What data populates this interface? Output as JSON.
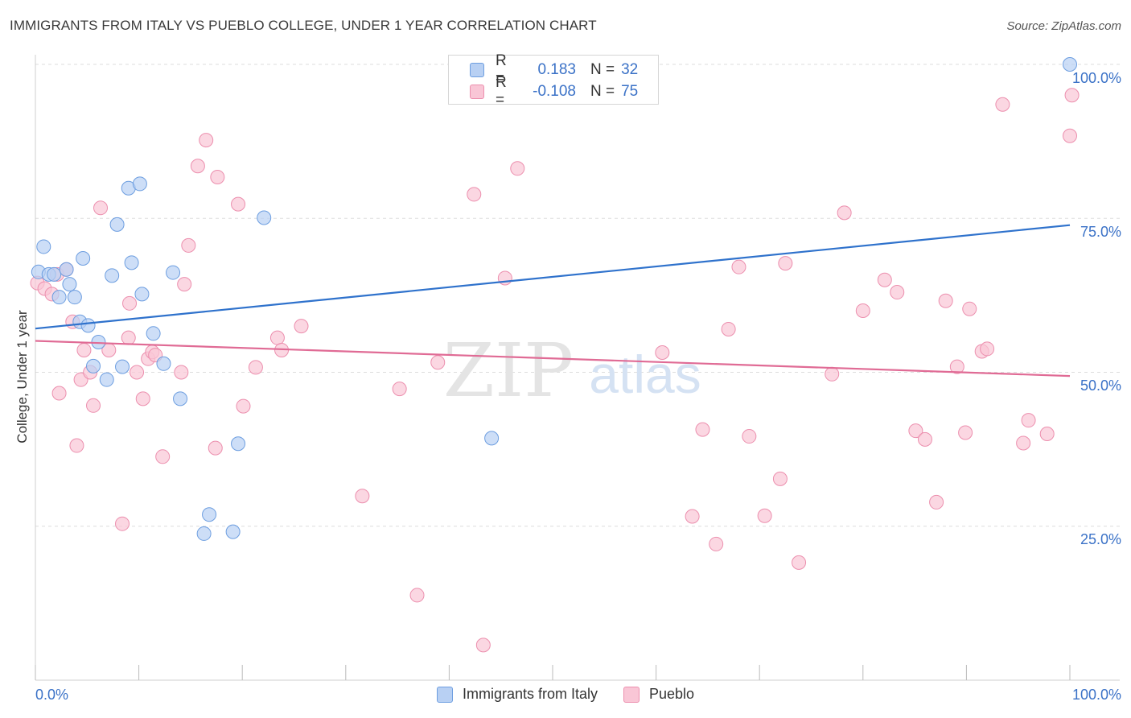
{
  "title": "IMMIGRANTS FROM ITALY VS PUEBLO COLLEGE, UNDER 1 YEAR CORRELATION CHART",
  "source": "Source: ZipAtlas.com",
  "watermark": {
    "zip": "ZIP",
    "atlas": "atlas"
  },
  "legend_top": [
    {
      "r_label": "R =",
      "r_value": "0.183",
      "n_label": "N =",
      "n_value": "32"
    },
    {
      "r_label": "R =",
      "r_value": "-0.108",
      "n_label": "N =",
      "n_value": "75"
    }
  ],
  "legend_bottom": {
    "series1": "Immigrants from Italy",
    "series2": "Pueblo"
  },
  "axes": {
    "ylabel": "College, Under 1 year",
    "y_ticks": [
      "100.0%",
      "75.0%",
      "50.0%",
      "25.0%"
    ],
    "x_left": "0.0%",
    "x_right": "100.0%"
  },
  "colors": {
    "blue_fill": "#b8d0f3",
    "blue_stroke": "#6d9ee0",
    "blue_line": "#2f72cc",
    "pink_fill": "#f9c6d6",
    "pink_stroke": "#ec8fae",
    "pink_line": "#e06b95",
    "grid": "#dddddd",
    "accent_text": "#3b72c7"
  },
  "chart_data": {
    "type": "scatter",
    "xlim": [
      0,
      100
    ],
    "ylim": [
      0,
      100
    ],
    "series": [
      {
        "name": "Immigrants from Italy",
        "r": 0.183,
        "n": 32,
        "trend": [
          [
            0,
            57.1
          ],
          [
            100,
            73.9
          ]
        ],
        "points": [
          [
            0.3,
            66.3
          ],
          [
            0.8,
            70.4
          ],
          [
            1.3,
            65.9
          ],
          [
            1.8,
            65.9
          ],
          [
            2.3,
            62.2
          ],
          [
            3.0,
            66.7
          ],
          [
            3.3,
            64.3
          ],
          [
            3.8,
            62.2
          ],
          [
            4.3,
            58.2
          ],
          [
            4.6,
            68.5
          ],
          [
            5.1,
            57.6
          ],
          [
            5.6,
            51.0
          ],
          [
            6.1,
            54.9
          ],
          [
            6.9,
            48.8
          ],
          [
            7.4,
            65.7
          ],
          [
            7.9,
            74.0
          ],
          [
            8.4,
            50.9
          ],
          [
            9.0,
            79.9
          ],
          [
            9.3,
            67.8
          ],
          [
            10.1,
            80.6
          ],
          [
            10.3,
            62.7
          ],
          [
            11.4,
            56.3
          ],
          [
            12.4,
            51.4
          ],
          [
            13.3,
            66.2
          ],
          [
            14.0,
            45.7
          ],
          [
            16.3,
            23.8
          ],
          [
            16.8,
            26.9
          ],
          [
            19.1,
            24.1
          ],
          [
            19.6,
            38.4
          ],
          [
            22.1,
            75.1
          ],
          [
            44.1,
            39.3
          ],
          [
            100.0,
            100.0
          ]
        ]
      },
      {
        "name": "Pueblo",
        "r": -0.108,
        "n": 75,
        "trend": [
          [
            0,
            55.1
          ],
          [
            100,
            49.4
          ]
        ],
        "points": [
          [
            0.2,
            64.5
          ],
          [
            0.9,
            63.6
          ],
          [
            1.6,
            62.7
          ],
          [
            2.1,
            65.9
          ],
          [
            2.3,
            46.6
          ],
          [
            3.0,
            66.7
          ],
          [
            3.6,
            58.2
          ],
          [
            4.0,
            38.1
          ],
          [
            4.4,
            48.8
          ],
          [
            4.7,
            53.6
          ],
          [
            5.3,
            50.0
          ],
          [
            5.6,
            44.6
          ],
          [
            6.3,
            76.7
          ],
          [
            7.1,
            53.6
          ],
          [
            8.4,
            25.4
          ],
          [
            9.0,
            55.6
          ],
          [
            9.1,
            61.2
          ],
          [
            9.8,
            50.0
          ],
          [
            10.4,
            45.7
          ],
          [
            10.9,
            52.2
          ],
          [
            11.3,
            53.3
          ],
          [
            11.6,
            52.8
          ],
          [
            12.3,
            36.3
          ],
          [
            14.1,
            50.0
          ],
          [
            14.4,
            64.3
          ],
          [
            14.8,
            70.6
          ],
          [
            15.7,
            83.5
          ],
          [
            16.5,
            87.7
          ],
          [
            17.4,
            37.7
          ],
          [
            17.6,
            81.7
          ],
          [
            19.6,
            77.3
          ],
          [
            20.1,
            44.5
          ],
          [
            21.3,
            50.8
          ],
          [
            23.4,
            55.6
          ],
          [
            23.8,
            53.6
          ],
          [
            25.7,
            57.5
          ],
          [
            31.6,
            29.9
          ],
          [
            35.2,
            47.3
          ],
          [
            36.9,
            13.8
          ],
          [
            38.9,
            51.6
          ],
          [
            42.4,
            78.9
          ],
          [
            43.3,
            5.7
          ],
          [
            45.4,
            65.3
          ],
          [
            46.6,
            83.1
          ],
          [
            60.6,
            53.2
          ],
          [
            63.5,
            26.6
          ],
          [
            64.5,
            40.7
          ],
          [
            65.8,
            22.1
          ],
          [
            67.0,
            57.0
          ],
          [
            68.0,
            67.1
          ],
          [
            69.0,
            39.6
          ],
          [
            70.5,
            26.7
          ],
          [
            72.0,
            32.7
          ],
          [
            72.5,
            67.7
          ],
          [
            73.8,
            19.1
          ],
          [
            77.0,
            49.7
          ],
          [
            78.2,
            75.9
          ],
          [
            80.0,
            60.0
          ],
          [
            82.1,
            65.0
          ],
          [
            83.3,
            63.0
          ],
          [
            85.1,
            40.5
          ],
          [
            86.0,
            39.1
          ],
          [
            87.1,
            28.9
          ],
          [
            88.0,
            61.6
          ],
          [
            89.1,
            50.9
          ],
          [
            89.9,
            40.2
          ],
          [
            90.3,
            60.3
          ],
          [
            91.5,
            53.4
          ],
          [
            92.0,
            53.8
          ],
          [
            93.5,
            93.5
          ],
          [
            95.5,
            38.5
          ],
          [
            96.0,
            42.2
          ],
          [
            97.8,
            40.0
          ],
          [
            100.0,
            88.4
          ],
          [
            100.2,
            95.0
          ]
        ]
      }
    ]
  }
}
